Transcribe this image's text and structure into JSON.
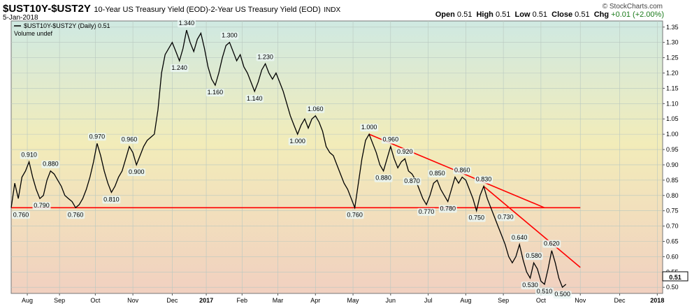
{
  "header": {
    "symbol": "$UST10Y-$UST2Y",
    "description": "10-Year US Treasury Yield (EOD)-2-Year US Treasury Yield (EOD)",
    "exchange": "INDX",
    "date": "5-Jan-2018",
    "credit": "© StockCharts.com"
  },
  "quote": {
    "open_label": "Open",
    "open": "0.51",
    "high_label": "High",
    "high": "0.51",
    "low_label": "Low",
    "low": "0.51",
    "close_label": "Close",
    "close": "0.51",
    "chg_label": "Chg",
    "chg": "+0.01 (+2.00%)"
  },
  "legend": {
    "series_label": "$UST10Y-$UST2Y (Daily) 0.51",
    "volume_label": "Volume undef"
  },
  "colors": {
    "bg_top": "#cfe9e2",
    "bg_mid": "#f2ecb9",
    "bg_bottom": "#f1d0c0",
    "line": "#000000",
    "trend": "#ff0000"
  },
  "chart_data": {
    "type": "line",
    "title": "$UST10Y-$UST2Y 10-Year US Treasury Yield (EOD)-2-Year US Treasury Yield (EOD)",
    "ylabel": "",
    "xlabel": "",
    "ylim": [
      0.48,
      1.37
    ],
    "y_ticks": [
      0.5,
      0.55,
      0.6,
      0.65,
      0.7,
      0.75,
      0.8,
      0.85,
      0.9,
      0.95,
      1.0,
      1.05,
      1.1,
      1.15,
      1.2,
      1.25,
      1.3,
      1.35
    ],
    "x_ticks": [
      "Aug",
      "Sep",
      "Oct",
      "Nov",
      "Dec",
      "2017",
      "Feb",
      "Mar",
      "Apr",
      "May",
      "Jun",
      "Jul",
      "Aug",
      "Sep",
      "Oct",
      "Nov",
      "Dec",
      "2018"
    ],
    "x_tick_index": [
      9,
      27,
      47,
      68,
      90,
      109,
      129,
      149,
      170,
      191,
      212,
      233,
      254,
      275,
      296,
      318,
      340,
      361
    ],
    "x_count": 365,
    "series": [
      {
        "points": [
          [
            0,
            0.76
          ],
          [
            2,
            0.84
          ],
          [
            4,
            0.79
          ],
          [
            6,
            0.86
          ],
          [
            8,
            0.88
          ],
          [
            10,
            0.91
          ],
          [
            12,
            0.86
          ],
          [
            14,
            0.82
          ],
          [
            16,
            0.79
          ],
          [
            18,
            0.8
          ],
          [
            20,
            0.85
          ],
          [
            22,
            0.88
          ],
          [
            24,
            0.87
          ],
          [
            26,
            0.85
          ],
          [
            28,
            0.83
          ],
          [
            30,
            0.8
          ],
          [
            32,
            0.79
          ],
          [
            34,
            0.78
          ],
          [
            36,
            0.76
          ],
          [
            38,
            0.77
          ],
          [
            40,
            0.79
          ],
          [
            42,
            0.82
          ],
          [
            44,
            0.86
          ],
          [
            46,
            0.91
          ],
          [
            48,
            0.97
          ],
          [
            50,
            0.93
          ],
          [
            52,
            0.88
          ],
          [
            54,
            0.84
          ],
          [
            56,
            0.81
          ],
          [
            58,
            0.83
          ],
          [
            60,
            0.86
          ],
          [
            62,
            0.88
          ],
          [
            64,
            0.92
          ],
          [
            66,
            0.96
          ],
          [
            68,
            0.94
          ],
          [
            70,
            0.9
          ],
          [
            72,
            0.93
          ],
          [
            74,
            0.96
          ],
          [
            76,
            0.98
          ],
          [
            78,
            0.99
          ],
          [
            80,
            1.0
          ],
          [
            82,
            1.08
          ],
          [
            84,
            1.2
          ],
          [
            86,
            1.26
          ],
          [
            88,
            1.28
          ],
          [
            90,
            1.3
          ],
          [
            92,
            1.27
          ],
          [
            94,
            1.24
          ],
          [
            96,
            1.28
          ],
          [
            98,
            1.34
          ],
          [
            100,
            1.3
          ],
          [
            102,
            1.27
          ],
          [
            104,
            1.31
          ],
          [
            106,
            1.33
          ],
          [
            108,
            1.28
          ],
          [
            110,
            1.22
          ],
          [
            112,
            1.18
          ],
          [
            114,
            1.16
          ],
          [
            116,
            1.2
          ],
          [
            118,
            1.25
          ],
          [
            120,
            1.29
          ],
          [
            122,
            1.3
          ],
          [
            124,
            1.27
          ],
          [
            126,
            1.24
          ],
          [
            128,
            1.26
          ],
          [
            130,
            1.22
          ],
          [
            132,
            1.2
          ],
          [
            134,
            1.17
          ],
          [
            136,
            1.14
          ],
          [
            138,
            1.17
          ],
          [
            140,
            1.21
          ],
          [
            142,
            1.23
          ],
          [
            144,
            1.2
          ],
          [
            146,
            1.18
          ],
          [
            148,
            1.2
          ],
          [
            150,
            1.17
          ],
          [
            152,
            1.14
          ],
          [
            154,
            1.1
          ],
          [
            156,
            1.06
          ],
          [
            158,
            1.03
          ],
          [
            160,
            1.0
          ],
          [
            162,
            1.03
          ],
          [
            164,
            1.05
          ],
          [
            166,
            1.02
          ],
          [
            168,
            1.05
          ],
          [
            170,
            1.06
          ],
          [
            172,
            1.04
          ],
          [
            174,
            1.01
          ],
          [
            176,
            0.96
          ],
          [
            178,
            0.94
          ],
          [
            180,
            0.93
          ],
          [
            182,
            0.9
          ],
          [
            184,
            0.87
          ],
          [
            186,
            0.84
          ],
          [
            188,
            0.82
          ],
          [
            190,
            0.79
          ],
          [
            192,
            0.76
          ],
          [
            194,
            0.84
          ],
          [
            196,
            0.92
          ],
          [
            198,
            0.98
          ],
          [
            200,
            1.0
          ],
          [
            202,
            0.97
          ],
          [
            204,
            0.94
          ],
          [
            206,
            0.9
          ],
          [
            208,
            0.88
          ],
          [
            210,
            0.92
          ],
          [
            212,
            0.96
          ],
          [
            214,
            0.92
          ],
          [
            216,
            0.89
          ],
          [
            218,
            0.91
          ],
          [
            220,
            0.92
          ],
          [
            222,
            0.88
          ],
          [
            224,
            0.87
          ],
          [
            226,
            0.85
          ],
          [
            228,
            0.82
          ],
          [
            230,
            0.79
          ],
          [
            232,
            0.77
          ],
          [
            234,
            0.8
          ],
          [
            236,
            0.84
          ],
          [
            238,
            0.85
          ],
          [
            240,
            0.82
          ],
          [
            242,
            0.8
          ],
          [
            244,
            0.78
          ],
          [
            246,
            0.82
          ],
          [
            248,
            0.86
          ],
          [
            250,
            0.84
          ],
          [
            252,
            0.86
          ],
          [
            254,
            0.85
          ],
          [
            256,
            0.82
          ],
          [
            258,
            0.79
          ],
          [
            260,
            0.75
          ],
          [
            262,
            0.8
          ],
          [
            264,
            0.83
          ],
          [
            266,
            0.79
          ],
          [
            268,
            0.76
          ],
          [
            270,
            0.73
          ],
          [
            272,
            0.7
          ],
          [
            274,
            0.67
          ],
          [
            276,
            0.64
          ],
          [
            278,
            0.6
          ],
          [
            280,
            0.58
          ],
          [
            282,
            0.6
          ],
          [
            284,
            0.64
          ],
          [
            286,
            0.59
          ],
          [
            288,
            0.55
          ],
          [
            290,
            0.53
          ],
          [
            292,
            0.58
          ],
          [
            294,
            0.56
          ],
          [
            296,
            0.52
          ],
          [
            298,
            0.51
          ],
          [
            300,
            0.56
          ],
          [
            302,
            0.62
          ],
          [
            304,
            0.58
          ],
          [
            306,
            0.53
          ],
          [
            308,
            0.5
          ],
          [
            310,
            0.51
          ]
        ]
      }
    ],
    "annotations": [
      {
        "x": 0,
        "y": 0.76,
        "text": "0.760",
        "pos": "below"
      },
      {
        "x": 10,
        "y": 0.91,
        "text": "0.910",
        "pos": "above"
      },
      {
        "x": 17,
        "y": 0.79,
        "text": "0.790",
        "pos": "below"
      },
      {
        "x": 22,
        "y": 0.88,
        "text": "0.880",
        "pos": "above"
      },
      {
        "x": 36,
        "y": 0.76,
        "text": "0.760",
        "pos": "below"
      },
      {
        "x": 48,
        "y": 0.97,
        "text": "0.970",
        "pos": "above"
      },
      {
        "x": 56,
        "y": 0.81,
        "text": "0.810",
        "pos": "below"
      },
      {
        "x": 66,
        "y": 0.96,
        "text": "0.960",
        "pos": "above"
      },
      {
        "x": 70,
        "y": 0.9,
        "text": "0.900",
        "pos": "below"
      },
      {
        "x": 98,
        "y": 1.34,
        "text": "1.340",
        "pos": "above"
      },
      {
        "x": 94,
        "y": 1.24,
        "text": "1.240",
        "pos": "below"
      },
      {
        "x": 122,
        "y": 1.3,
        "text": "1.300",
        "pos": "above"
      },
      {
        "x": 114,
        "y": 1.16,
        "text": "1.160",
        "pos": "below"
      },
      {
        "x": 142,
        "y": 1.23,
        "text": "1.230",
        "pos": "above"
      },
      {
        "x": 136,
        "y": 1.14,
        "text": "1.140",
        "pos": "below"
      },
      {
        "x": 170,
        "y": 1.06,
        "text": "1.060",
        "pos": "above"
      },
      {
        "x": 160,
        "y": 1.0,
        "text": "1.000",
        "pos": "below"
      },
      {
        "x": 200,
        "y": 1.0,
        "text": "1.000",
        "pos": "above"
      },
      {
        "x": 192,
        "y": 0.76,
        "text": "0.760",
        "pos": "below"
      },
      {
        "x": 212,
        "y": 0.96,
        "text": "0.960",
        "pos": "above"
      },
      {
        "x": 208,
        "y": 0.88,
        "text": "0.880",
        "pos": "below"
      },
      {
        "x": 220,
        "y": 0.92,
        "text": "0.920",
        "pos": "above"
      },
      {
        "x": 224,
        "y": 0.87,
        "text": "0.870",
        "pos": "below"
      },
      {
        "x": 238,
        "y": 0.85,
        "text": "0.850",
        "pos": "above"
      },
      {
        "x": 232,
        "y": 0.77,
        "text": "0.770",
        "pos": "below"
      },
      {
        "x": 244,
        "y": 0.78,
        "text": "0.780",
        "pos": "below"
      },
      {
        "x": 252,
        "y": 0.86,
        "text": "0.860",
        "pos": "above"
      },
      {
        "x": 260,
        "y": 0.75,
        "text": "0.750",
        "pos": "below"
      },
      {
        "x": 264,
        "y": 0.83,
        "text": "0.830",
        "pos": "above"
      },
      {
        "x": 270,
        "y": 0.73,
        "text": "0.730",
        "pos": "right"
      },
      {
        "x": 284,
        "y": 0.64,
        "text": "0.640",
        "pos": "above"
      },
      {
        "x": 290,
        "y": 0.53,
        "text": "0.530",
        "pos": "below"
      },
      {
        "x": 292,
        "y": 0.58,
        "text": "0.580",
        "pos": "above"
      },
      {
        "x": 298,
        "y": 0.51,
        "text": "0.510",
        "pos": "below"
      },
      {
        "x": 302,
        "y": 0.62,
        "text": "0.620",
        "pos": "above"
      },
      {
        "x": 308,
        "y": 0.5,
        "text": "0.500",
        "pos": "below"
      }
    ],
    "trend_lines": [
      {
        "x1": 0,
        "y1": 0.76,
        "x2": 318,
        "y2": 0.76
      },
      {
        "x1": 200,
        "y1": 1.0,
        "x2": 298,
        "y2": 0.76
      },
      {
        "x1": 264,
        "y1": 0.83,
        "x2": 318,
        "y2": 0.565
      }
    ],
    "last_value_label": "0.51"
  }
}
